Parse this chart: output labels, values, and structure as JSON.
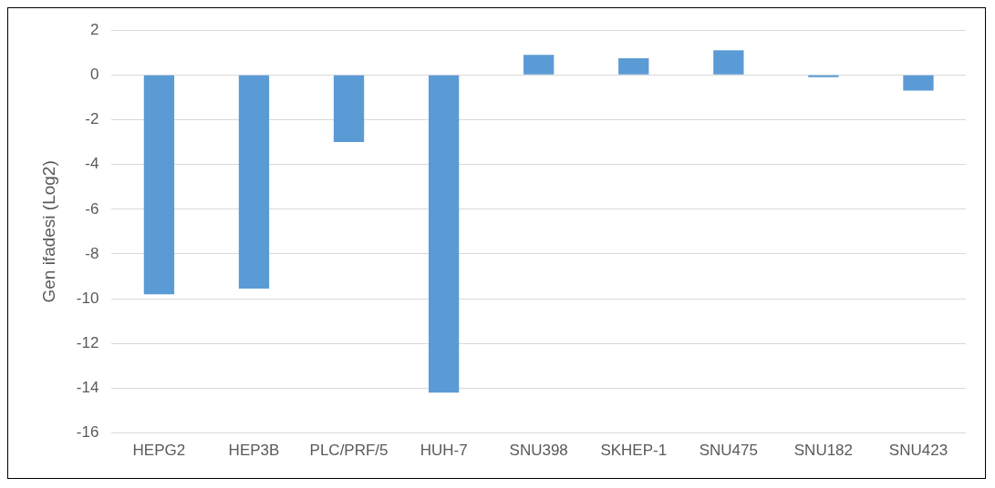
{
  "chart_data": {
    "type": "bar",
    "ylabel": "Gen ifadesi (Log2)",
    "categories": [
      "HEPG2",
      "HEP3B",
      "PLC/PRF/5",
      "HUH-7",
      "SNU398",
      "SKHEP-1",
      "SNU475",
      "SNU182",
      "SNU423"
    ],
    "values": [
      -9.8,
      -9.55,
      -3.0,
      -14.2,
      0.9,
      0.75,
      1.1,
      -0.1,
      -0.7
    ],
    "color": "#5b9bd5",
    "ylim": [
      -16,
      2
    ],
    "yticks": [
      -16,
      -14,
      -12,
      -10,
      -8,
      -6,
      -4,
      -2,
      0,
      2
    ],
    "grid": "y",
    "legend": false
  }
}
